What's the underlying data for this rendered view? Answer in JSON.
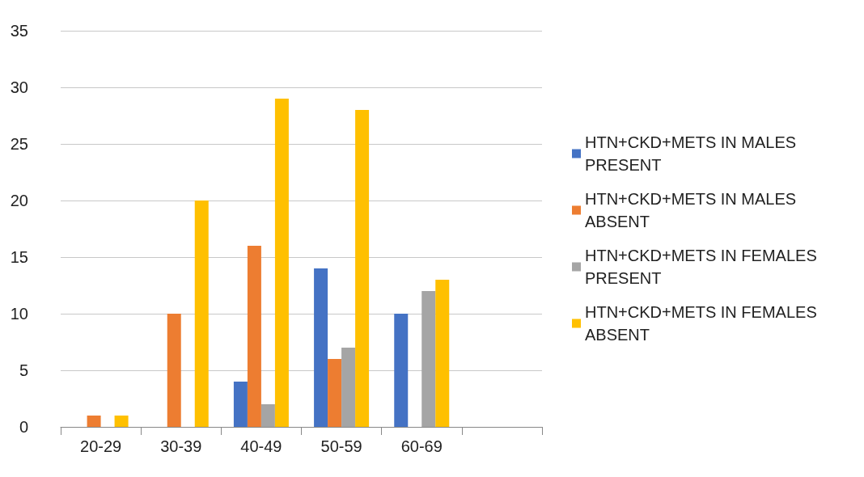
{
  "chart_data": {
    "type": "bar",
    "categories": [
      "20-29",
      "30-39",
      "40-49",
      "50-59",
      "60-69",
      null
    ],
    "series": [
      {
        "name": "HTN+CKD+METS IN MALES PRESENT",
        "color": "#4472c4",
        "values": [
          0,
          0,
          4,
          14,
          10,
          null
        ]
      },
      {
        "name": "HTN+CKD+METS IN MALES ABSENT",
        "color": "#ed7d31",
        "values": [
          1,
          10,
          16,
          6,
          0,
          null
        ]
      },
      {
        "name": "HTN+CKD+METS IN FEMALES PRESENT",
        "color": "#a5a5a5",
        "values": [
          0,
          0,
          2,
          7,
          12,
          null
        ]
      },
      {
        "name": "HTN+CKD+METS IN FEMALES ABSENT",
        "color": "#ffc000",
        "values": [
          1,
          20,
          29,
          28,
          13,
          null
        ]
      }
    ],
    "ylim": [
      0,
      35
    ],
    "yticks": [
      0,
      5,
      10,
      15,
      20,
      25,
      30,
      35
    ],
    "grid": "y",
    "legend": "right"
  }
}
